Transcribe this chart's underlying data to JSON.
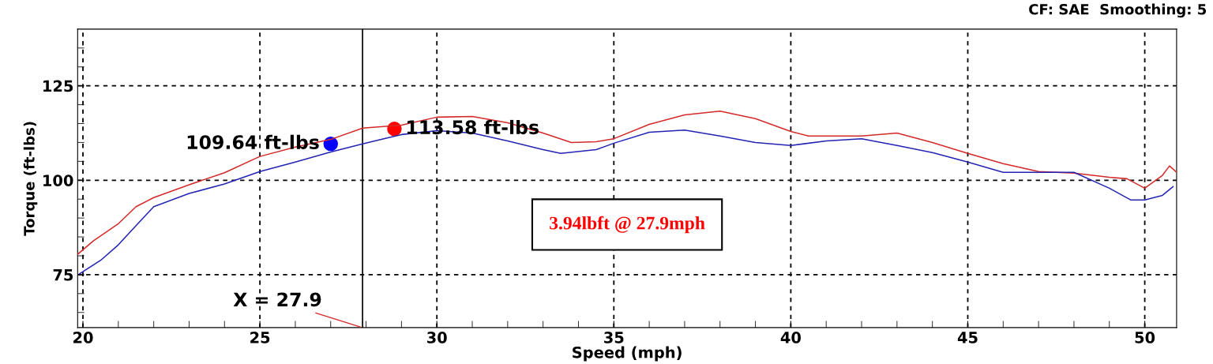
{
  "chart_data": {
    "type": "line",
    "subtitle": "CF: SAE  Smoothing: 5",
    "xlabel": "Speed (mph)",
    "ylabel": "Torque (ft-lbs)",
    "xlim": [
      19.85,
      50.9
    ],
    "ylim": [
      61,
      140
    ],
    "xticks": [
      20,
      {
        "value": 21,
        "label": null
      },
      {
        "value": 22,
        "label": null
      },
      {
        "value": 23,
        "label": null
      },
      {
        "value": 24,
        "label": null
      },
      25,
      {
        "value": 26,
        "label": null
      },
      {
        "value": 27,
        "label": null
      },
      {
        "value": 28,
        "label": null
      },
      {
        "value": 29,
        "label": null
      },
      30,
      {
        "value": 31,
        "label": null
      },
      {
        "value": 32,
        "label": null
      },
      {
        "value": 33,
        "label": null
      },
      {
        "value": 34,
        "label": null
      },
      35,
      {
        "value": 36,
        "label": null
      },
      {
        "value": 37,
        "label": null
      },
      {
        "value": 38,
        "label": null
      },
      {
        "value": 39,
        "label": null
      },
      40,
      {
        "value": 41,
        "label": null
      },
      {
        "value": 42,
        "label": null
      },
      {
        "value": 43,
        "label": null
      },
      {
        "value": 44,
        "label": null
      },
      45,
      {
        "value": 46,
        "label": null
      },
      {
        "value": 47,
        "label": null
      },
      {
        "value": 48,
        "label": null
      },
      {
        "value": 49,
        "label": null
      },
      50
    ],
    "yticks": [
      {
        "value": 65,
        "label": null
      },
      {
        "value": 70,
        "label": null
      },
      75,
      {
        "value": 80,
        "label": null
      },
      {
        "value": 85,
        "label": null
      },
      {
        "value": 90,
        "label": null
      },
      {
        "value": 95,
        "label": null
      },
      100,
      {
        "value": 105,
        "label": null
      },
      {
        "value": 110,
        "label": null
      },
      {
        "value": 115,
        "label": null
      },
      {
        "value": 120,
        "label": null
      },
      125,
      {
        "value": 130,
        "label": null
      },
      {
        "value": 135,
        "label": null
      }
    ],
    "grid": true,
    "legend": false,
    "marker": "none",
    "line_style": "solid",
    "series": [
      {
        "color": "#d42a2a",
        "x": [
          19.85,
          20.3,
          21,
          21.5,
          22,
          23,
          24,
          25,
          26,
          27,
          27.9,
          29,
          30,
          31,
          32,
          33,
          33.8,
          34.5,
          35,
          36,
          37,
          38,
          39,
          40,
          40.5,
          41,
          42,
          43,
          44,
          45,
          46,
          47,
          48,
          49,
          49.5,
          50,
          50.5,
          50.7,
          50.9
        ],
        "values": [
          80.4,
          84,
          88.5,
          93,
          95.4,
          98.8,
          102,
          106.3,
          108.8,
          110.8,
          113.8,
          114.6,
          116.7,
          116.9,
          115.2,
          112.5,
          110,
          110.2,
          111,
          114.8,
          117.3,
          118.3,
          116.3,
          112.9,
          111.7,
          111.7,
          111.7,
          112.5,
          110,
          107.1,
          104.4,
          102.3,
          101.9,
          100.8,
          100.4,
          97.9,
          101.3,
          103.8,
          102.1
        ]
      },
      {
        "color": "#2424b4",
        "x": [
          19.9,
          20.5,
          21,
          21.5,
          22,
          23,
          24,
          25,
          26,
          27,
          27.9,
          28.5,
          29,
          30,
          31,
          32,
          33,
          33.5,
          34.5,
          35,
          36,
          37,
          38,
          39,
          40,
          41,
          42,
          43,
          44,
          45,
          46,
          47,
          48,
          49,
          49.6,
          50,
          50.5,
          50.8
        ],
        "values": [
          75.2,
          78.8,
          82.9,
          88,
          93,
          96.5,
          99,
          102.3,
          104.8,
          107.5,
          109.6,
          111,
          112.1,
          113.1,
          112.5,
          110.4,
          108.1,
          107.1,
          108.1,
          109.8,
          112.7,
          113.3,
          111.7,
          110,
          109.2,
          110.4,
          111,
          109.2,
          107.3,
          104.8,
          102.1,
          102.1,
          102.1,
          97.9,
          94.8,
          94.8,
          96,
          98.3
        ]
      },
      {
        "type": "scatter",
        "marker": "circle",
        "color": "#0000ff",
        "x": [
          27.0
        ],
        "values": [
          109.64
        ]
      },
      {
        "type": "scatter",
        "marker": "circle",
        "color": "#ff0000",
        "x": [
          28.8
        ],
        "values": [
          113.58
        ]
      }
    ],
    "ref_lines": [
      {
        "axis": "x",
        "value": 27.9,
        "label": "X = 27.9",
        "color": "#000000"
      }
    ],
    "annotations": [
      {
        "text": "109.64 ft-lbs",
        "x": 27.0,
        "y": 109.64
      },
      {
        "text": "113.58 ft-lbs",
        "x": 28.8,
        "y": 113.58
      },
      "3.94lbft @ 27.9mph"
    ]
  }
}
